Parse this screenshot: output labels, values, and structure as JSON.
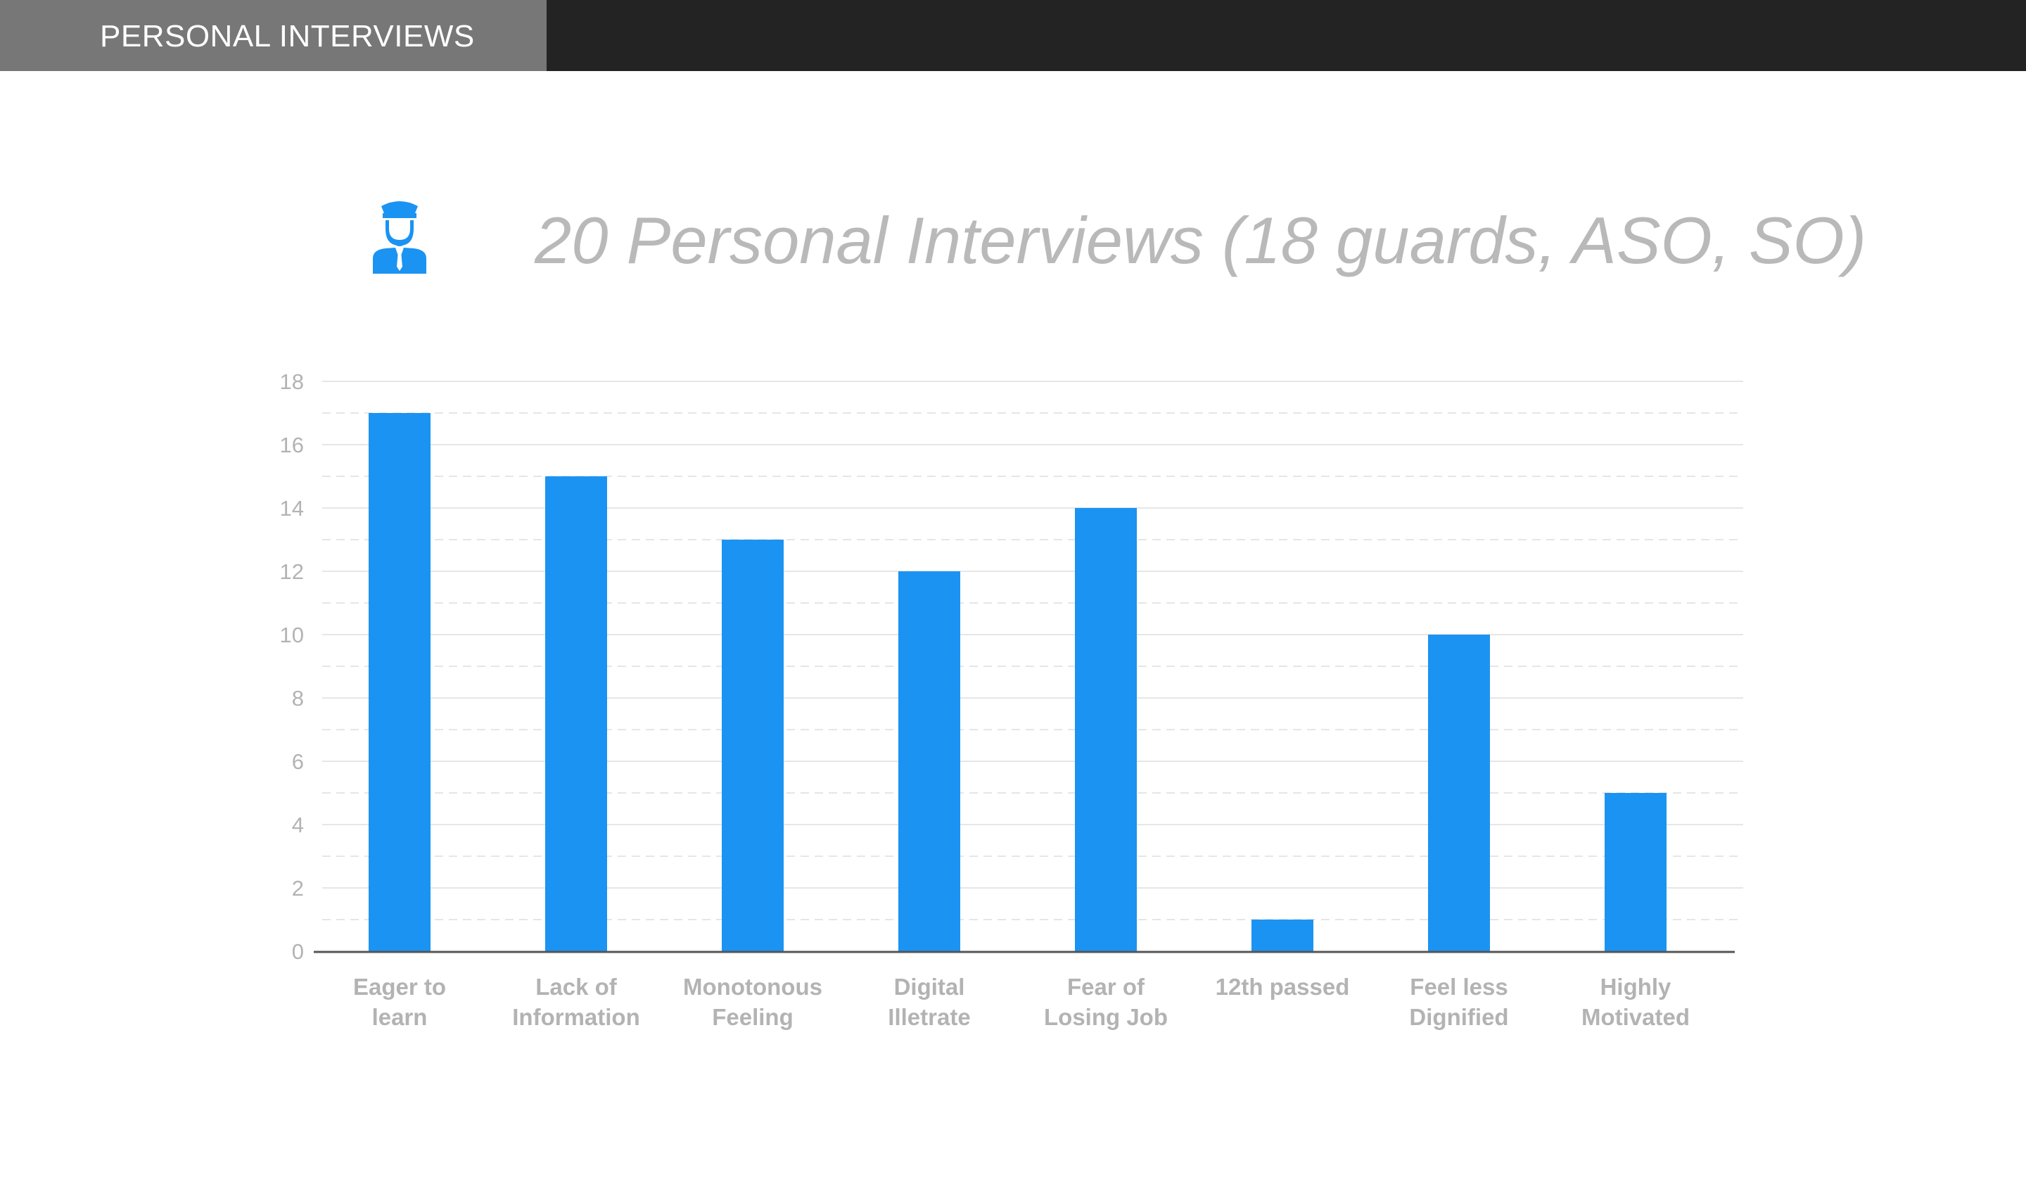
{
  "header": {
    "section_label": "PERSONAL INTERVIEWS"
  },
  "icon": {
    "name": "security-guard-icon",
    "color": "#1b93f2"
  },
  "chart_data": {
    "type": "bar",
    "title": "20 Personal Interviews (18 guards, ASO, SO)",
    "xlabel": "",
    "ylabel": "",
    "categories": [
      [
        "Eager to",
        "learn"
      ],
      [
        "Lack of",
        "Information"
      ],
      [
        "Monotonous",
        "Feeling"
      ],
      [
        "Digital",
        "Illetrate"
      ],
      [
        "Fear of",
        "Losing Job"
      ],
      [
        "12th passed"
      ],
      [
        "Feel less",
        "Dignified"
      ],
      [
        "Highly",
        "Motivated"
      ]
    ],
    "values": [
      17,
      15,
      13,
      12,
      14,
      1,
      10,
      5
    ],
    "ylim": [
      0,
      18
    ],
    "yticks": [
      0,
      2,
      4,
      6,
      8,
      10,
      12,
      14,
      16,
      18
    ],
    "grid": true,
    "legend": "none",
    "colors": {
      "bar": "#1b93f2",
      "grid": "#e6e6e6",
      "axis": "#555555",
      "label": "#b3b3b3"
    }
  }
}
